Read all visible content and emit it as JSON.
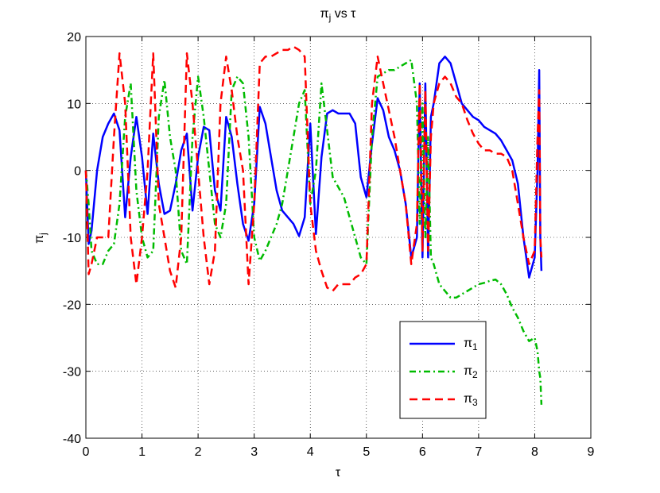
{
  "chart_data": {
    "type": "line",
    "title": "πj vs τ",
    "x_label": "τ",
    "y_label": "πj",
    "x": [
      0,
      0.05,
      0.1,
      0.2,
      0.3,
      0.4,
      0.5,
      0.6,
      0.7,
      0.8,
      0.9,
      1.0,
      1.1,
      1.2,
      1.3,
      1.4,
      1.5,
      1.6,
      1.7,
      1.8,
      1.9,
      2.0,
      2.1,
      2.2,
      2.3,
      2.4,
      2.5,
      2.6,
      2.7,
      2.8,
      2.9,
      3.0,
      3.1,
      3.2,
      3.3,
      3.4,
      3.5,
      3.6,
      3.7,
      3.8,
      3.9,
      4.0,
      4.1,
      4.2,
      4.3,
      4.4,
      4.5,
      4.6,
      4.7,
      4.8,
      4.9,
      5.0,
      5.1,
      5.2,
      5.3,
      5.4,
      5.5,
      5.6,
      5.7,
      5.8,
      5.9,
      5.95,
      6.0,
      6.05,
      6.1,
      6.15,
      6.2,
      6.3,
      6.4,
      6.5,
      6.6,
      6.7,
      6.8,
      6.9,
      7.0,
      7.1,
      7.2,
      7.3,
      7.4,
      7.5,
      7.6,
      7.7,
      7.8,
      7.9,
      8.0,
      8.05,
      8.08,
      8.1,
      8.12
    ],
    "series": [
      {
        "name": "π1",
        "color": "#0000ff",
        "dash": "solid",
        "values": [
          0,
          -11,
          -9,
          0,
          5,
          7,
          8.5,
          6,
          -7,
          2,
          8,
          2,
          -6.5,
          5.5,
          -2,
          -6.5,
          -6,
          -2,
          3,
          5.5,
          -6,
          2,
          6.5,
          6,
          -3,
          -6,
          8,
          5,
          -2,
          -8,
          -10.5,
          -5,
          9.5,
          7,
          2,
          -3,
          -6,
          -7,
          -8,
          -9.8,
          -7,
          7,
          -9.5,
          2,
          8.5,
          9,
          8.5,
          8.5,
          8.5,
          7,
          -1,
          -4,
          4,
          10.8,
          9,
          5,
          3,
          0,
          -5,
          -13,
          -10,
          13,
          -13,
          13,
          -13,
          8,
          10,
          16,
          17,
          16,
          13,
          10,
          9,
          8,
          7.5,
          6.5,
          6,
          5.5,
          4.5,
          3,
          1.5,
          -2,
          -10,
          -16,
          -13,
          0,
          15,
          -10,
          -15
        ]
      },
      {
        "name": "π2",
        "color": "#00bb00",
        "dash": "dashdot",
        "values": [
          0,
          -5,
          -12,
          -14,
          -14,
          -12,
          -11,
          -5,
          8,
          13,
          -3,
          -10,
          -13,
          -12,
          8,
          13.5,
          5,
          0,
          -12,
          -14,
          5,
          14,
          8,
          0,
          -8,
          -10,
          -5,
          12,
          14,
          13,
          5,
          -10,
          -13.5,
          -12,
          -10,
          -8,
          -5,
          0,
          5,
          10,
          12,
          -5,
          0,
          13,
          6,
          -1,
          -2.5,
          -4,
          -7,
          -10,
          -13,
          -14,
          5,
          14,
          14.5,
          15,
          15,
          15.5,
          16,
          16.5,
          10,
          -8,
          10,
          -10,
          5,
          -13,
          -14,
          -17,
          -18,
          -19,
          -19,
          -18.5,
          -18,
          -17.5,
          -17,
          -16.8,
          -16.5,
          -16.3,
          -17,
          -18.5,
          -20.5,
          -22,
          -24,
          -25.5,
          -25,
          -27,
          -30,
          -31,
          -35
        ]
      },
      {
        "name": "π3",
        "color": "#ff0000",
        "dash": "dashed",
        "values": [
          0,
          -15.5,
          -14,
          -10,
          -10,
          -10,
          5,
          17.5,
          10,
          -10,
          -17,
          -10,
          0,
          17.5,
          -5,
          -10,
          -15,
          -17.5,
          -10,
          17.5,
          10,
          0,
          -10,
          -17,
          -12,
          10,
          17,
          12,
          5,
          0,
          -17,
          -5,
          16,
          17,
          17,
          17.5,
          18,
          18,
          18.5,
          18,
          17,
          -5,
          -12,
          -15,
          -17.5,
          -18,
          -17,
          -17,
          -17,
          -16,
          -15.5,
          -14,
          10,
          17,
          13,
          9,
          5,
          0,
          -5,
          -14,
          -8,
          13,
          -12,
          12,
          -12,
          5,
          10,
          13,
          14,
          13,
          11,
          10,
          7.5,
          5.5,
          4,
          3,
          3,
          2.5,
          2.5,
          2,
          0,
          -5,
          -10,
          -14,
          -12,
          5,
          12,
          -10,
          -13
        ]
      }
    ],
    "xlim": [
      0,
      9
    ],
    "xticks": [
      0,
      1,
      2,
      3,
      4,
      5,
      6,
      7,
      8,
      9
    ],
    "ylim": [
      -40,
      20
    ],
    "yticks": [
      -40,
      -30,
      -20,
      -10,
      0,
      10,
      20
    ],
    "grid": true,
    "legend": "lower right"
  }
}
